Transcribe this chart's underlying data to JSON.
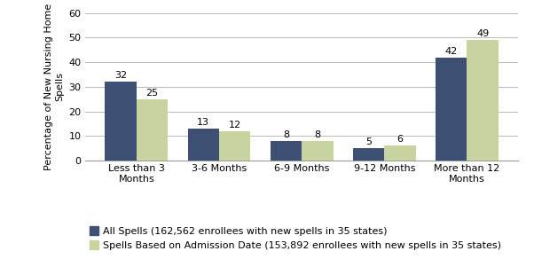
{
  "categories": [
    "Less than 3\nMonths",
    "3-6 Months",
    "6-9 Months",
    "9-12 Months",
    "More than 12\nMonths"
  ],
  "all_spells": [
    32,
    13,
    8,
    5,
    42
  ],
  "admission_date": [
    25,
    12,
    8,
    6,
    49
  ],
  "bar_color_all": "#3d4f72",
  "bar_color_admission": "#c8d4a0",
  "ylabel": "Percentage of New Nursing Home\nSpells",
  "ylim": [
    0,
    60
  ],
  "yticks": [
    0,
    10,
    20,
    30,
    40,
    50,
    60
  ],
  "legend_all": "All Spells (162,562 enrollees with new spells in 35 states)",
  "legend_admission": "Spells Based on Admission Date (153,892 enrollees with new spells in 35 states)",
  "bar_width": 0.38,
  "label_fontsize": 8,
  "tick_fontsize": 8,
  "legend_fontsize": 8,
  "ylabel_fontsize": 8,
  "background_color": "#ffffff",
  "grid_color": "#bbbbbb"
}
